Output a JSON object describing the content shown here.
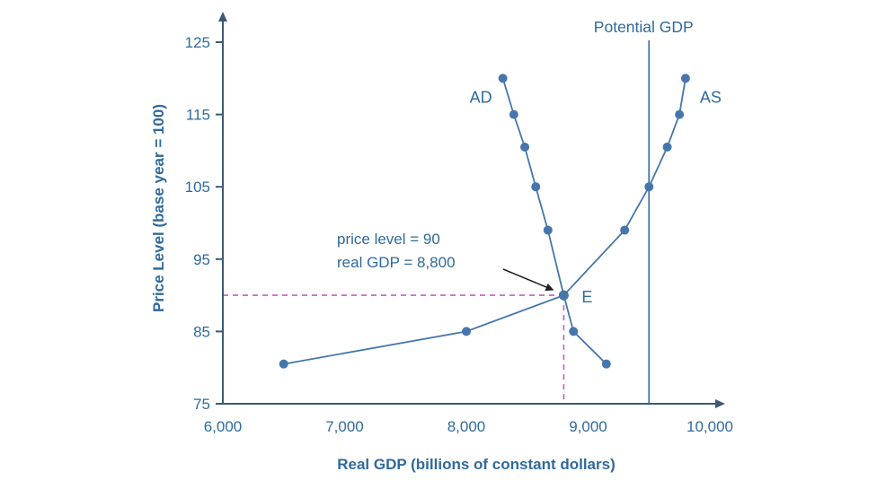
{
  "figure": {
    "background": "#ffffff"
  },
  "chart_data": {
    "type": "line",
    "title": "",
    "xlabel": "Real GDP (billions of constant dollars)",
    "ylabel": "Price Level (base year = 100)",
    "xlim": [
      6000,
      10000
    ],
    "ylim": [
      75,
      125
    ],
    "grid": false,
    "legend": "none",
    "x_ticks": [
      {
        "value": 6000,
        "label": "6,000"
      },
      {
        "value": 7000,
        "label": "7,000"
      },
      {
        "value": 8000,
        "label": "8,000"
      },
      {
        "value": 9000,
        "label": "9,000"
      },
      {
        "value": 10000,
        "label": "10,000"
      }
    ],
    "y_ticks": [
      {
        "value": 75,
        "label": "75"
      },
      {
        "value": 85,
        "label": "85"
      },
      {
        "value": 95,
        "label": "95"
      },
      {
        "value": 105,
        "label": "105"
      },
      {
        "value": 115,
        "label": "115"
      },
      {
        "value": 125,
        "label": "125"
      }
    ],
    "series": [
      {
        "name": "AD",
        "label": "AD",
        "points": [
          [
            8300,
            120
          ],
          [
            8390,
            115
          ],
          [
            8480,
            110.5
          ],
          [
            8570,
            105
          ],
          [
            8670,
            99
          ],
          [
            8800,
            90
          ],
          [
            8880,
            85
          ],
          [
            9150,
            80.5
          ]
        ]
      },
      {
        "name": "AS",
        "label": "AS",
        "points": [
          [
            6500,
            80.5
          ],
          [
            8000,
            85
          ],
          [
            8800,
            90
          ],
          [
            9300,
            99
          ],
          [
            9500,
            105
          ],
          [
            9650,
            110.5
          ],
          [
            9750,
            115
          ],
          [
            9800,
            120
          ]
        ]
      }
    ],
    "potential_gdp": {
      "label": "Potential GDP",
      "x": 9500
    },
    "equilibrium": {
      "label": "E",
      "x": 8800,
      "y": 90
    },
    "annotation": {
      "lines": [
        "price level = 90",
        "real GDP = 8,800"
      ]
    },
    "colors": {
      "text": "#2f6a9e",
      "curve": "#4676ab",
      "axis": "#3c5a76",
      "dashed": "#c55bc5",
      "arrow": "#231f20"
    }
  }
}
